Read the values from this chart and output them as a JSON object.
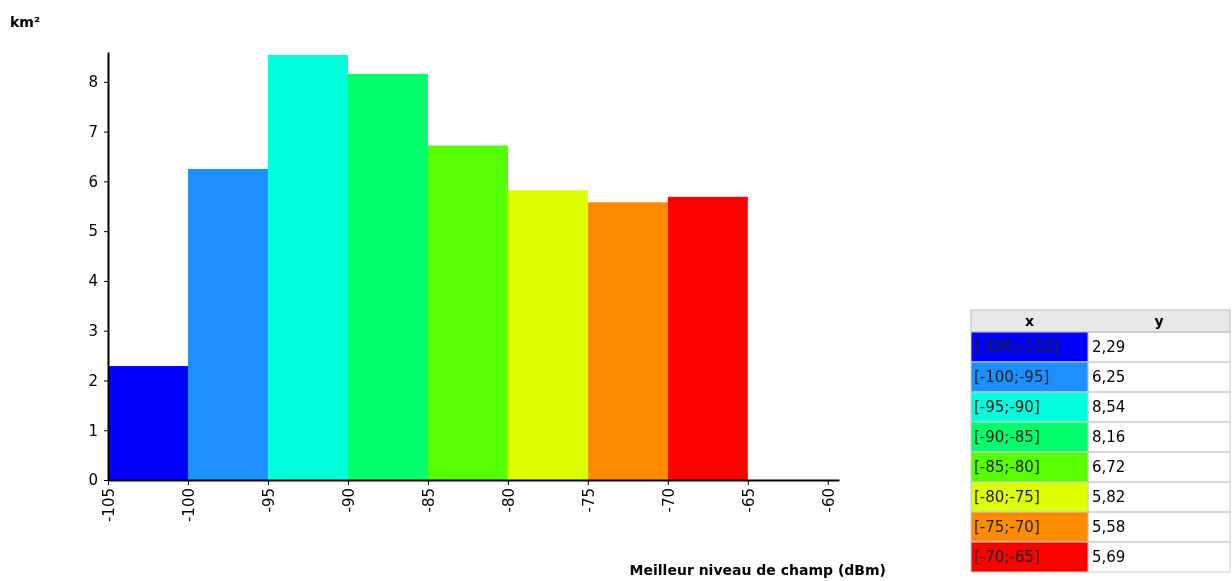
{
  "chart_data": [
    {
      "type": "histogram",
      "ylabel": "km²",
      "xlabel": "Meilleur niveau de champ (dBm)",
      "bins": [
        -105,
        -100,
        -95,
        -90,
        -85,
        -80,
        -75,
        -70,
        -65
      ],
      "values": [
        2.29,
        6.25,
        8.54,
        8.16,
        6.72,
        5.82,
        5.58,
        5.69
      ],
      "colors": [
        "#0000ff",
        "#1e8fff",
        "#00ffdc",
        "#00ff6a",
        "#55ff00",
        "#ddff00",
        "#ff8c00",
        "#ff0000"
      ],
      "xlim": [
        -105,
        -59.3
      ],
      "ylim": [
        0,
        8.6
      ],
      "xticks": [
        -105,
        -100,
        -95,
        -90,
        -85,
        -80,
        -75,
        -70,
        -65,
        -60
      ],
      "yticks": [
        0,
        1,
        2,
        3,
        4,
        5,
        6,
        7,
        8
      ]
    },
    {
      "type": "other",
      "annotations": [
        "x",
        "y"
      ],
      "categories": [
        "[-105;-100]",
        "[-100;-95]",
        "[-95;-90]",
        "[-90;-85]",
        "[-85;-80]",
        "[-80;-75]",
        "[-75;-70]",
        "[-70;-65]"
      ],
      "values": [
        2.29,
        6.25,
        8.54,
        8.16,
        6.72,
        5.82,
        5.58,
        5.69
      ],
      "value_labels": [
        "2,29",
        "6,25",
        "8,54",
        "8,16",
        "6,72",
        "5,82",
        "5,58",
        "5,69"
      ],
      "colors": [
        "#0000ff",
        "#1e8fff",
        "#00ffdc",
        "#00ff6a",
        "#55ff00",
        "#ddff00",
        "#ff8c00",
        "#ff0000"
      ]
    }
  ]
}
